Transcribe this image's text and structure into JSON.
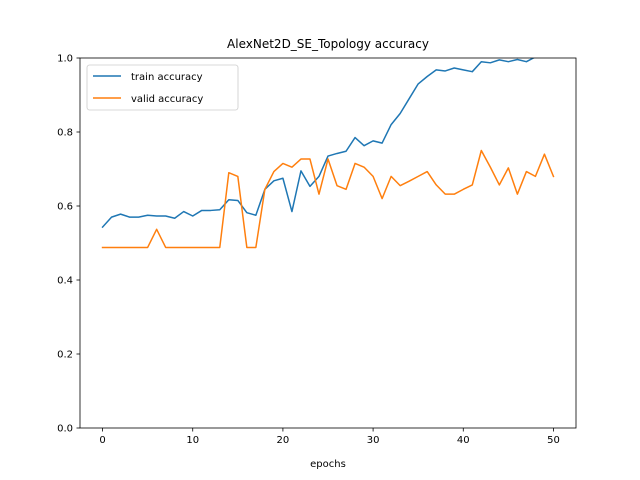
{
  "chart_data": {
    "type": "line",
    "title": "AlexNet2D_SE_Topology accuracy",
    "xlabel": "epochs",
    "ylabel": "",
    "xlim": [
      -2.5,
      52.5
    ],
    "ylim": [
      0.0,
      1.0
    ],
    "xticks": [
      0,
      10,
      20,
      30,
      40,
      50
    ],
    "yticks": [
      "0.0",
      "0.2",
      "0.4",
      "0.6",
      "0.8",
      "1.0"
    ],
    "legend_position": "upper-left",
    "grid": false,
    "series": [
      {
        "name": "train accuracy",
        "color": "#1f77b4",
        "x": [
          0,
          1,
          2,
          3,
          4,
          5,
          6,
          7,
          8,
          9,
          10,
          11,
          12,
          13,
          14,
          15,
          16,
          17,
          18,
          19,
          20,
          21,
          22,
          23,
          24,
          25,
          26,
          27,
          28,
          29,
          30,
          31,
          32,
          33,
          34,
          35,
          36,
          37,
          38,
          39,
          40,
          41,
          42,
          43,
          44,
          45,
          46,
          47,
          48,
          49,
          50
        ],
        "values": [
          0.543,
          0.57,
          0.578,
          0.57,
          0.57,
          0.575,
          0.573,
          0.573,
          0.567,
          0.585,
          0.573,
          0.588,
          0.588,
          0.59,
          0.617,
          0.615,
          0.582,
          0.575,
          0.645,
          0.668,
          0.675,
          0.585,
          0.695,
          0.653,
          0.68,
          0.735,
          0.742,
          0.748,
          0.785,
          0.763,
          0.776,
          0.77,
          0.82,
          0.85,
          0.89,
          0.93,
          0.95,
          0.968,
          0.965,
          0.973,
          0.968,
          0.963,
          0.99,
          0.987,
          0.995,
          0.99,
          0.996,
          0.99,
          1.003,
          1.008,
          1.01
        ]
      },
      {
        "name": "valid accuracy",
        "color": "#ff7f0e",
        "x": [
          0,
          1,
          2,
          3,
          4,
          5,
          6,
          7,
          8,
          9,
          10,
          11,
          12,
          13,
          14,
          15,
          16,
          17,
          18,
          19,
          20,
          21,
          22,
          23,
          24,
          25,
          26,
          27,
          28,
          29,
          30,
          31,
          32,
          33,
          34,
          35,
          36,
          37,
          38,
          39,
          40,
          41,
          42,
          43,
          44,
          45,
          46,
          47,
          48,
          49,
          50
        ],
        "values": [
          0.488,
          0.488,
          0.488,
          0.488,
          0.488,
          0.488,
          0.537,
          0.488,
          0.488,
          0.488,
          0.488,
          0.488,
          0.488,
          0.488,
          0.69,
          0.68,
          0.488,
          0.488,
          0.645,
          0.693,
          0.715,
          0.705,
          0.727,
          0.727,
          0.632,
          0.727,
          0.655,
          0.645,
          0.715,
          0.705,
          0.68,
          0.62,
          0.68,
          0.655,
          0.667,
          0.68,
          0.693,
          0.657,
          0.632,
          0.632,
          0.645,
          0.657,
          0.75,
          0.705,
          0.657,
          0.703,
          0.632,
          0.693,
          0.68,
          0.74,
          0.68
        ]
      }
    ]
  }
}
